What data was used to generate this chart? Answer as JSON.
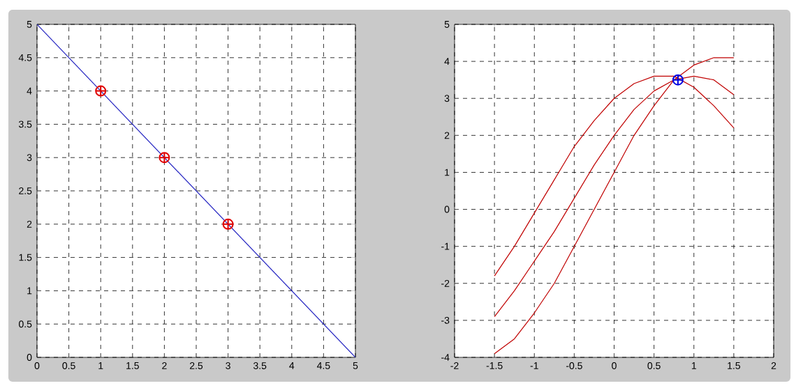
{
  "chart_data": [
    {
      "type": "line",
      "xlim": [
        0,
        5
      ],
      "ylim": [
        0,
        5
      ],
      "xticks": [
        0,
        0.5,
        1,
        1.5,
        2,
        2.5,
        3,
        3.5,
        4,
        4.5,
        5
      ],
      "yticks": [
        0,
        0.5,
        1,
        1.5,
        2,
        2.5,
        3,
        3.5,
        4,
        4.5,
        5
      ],
      "grid": true,
      "series": [
        {
          "type": "line",
          "color": "#2020c0",
          "x": [
            0,
            5
          ],
          "values": [
            5,
            0
          ]
        },
        {
          "type": "scatter",
          "marker": "cross",
          "color": "#e00000",
          "x": [
            1,
            2,
            3
          ],
          "values": [
            4,
            3,
            2
          ]
        }
      ]
    },
    {
      "type": "line",
      "xlim": [
        -2,
        2
      ],
      "ylim": [
        -4,
        5
      ],
      "xticks": [
        -2,
        -1.5,
        -1,
        -0.5,
        0,
        0.5,
        1,
        1.5,
        2
      ],
      "yticks": [
        -4,
        -3,
        -2,
        -1,
        0,
        1,
        2,
        3,
        4,
        5
      ],
      "grid": true,
      "series": [
        {
          "type": "line",
          "color": "#c00000",
          "x": [
            -1.5,
            -1.25,
            -1,
            -0.75,
            -0.5,
            -0.25,
            0,
            0.25,
            0.5,
            0.75,
            1,
            1.25,
            1.5
          ],
          "values": [
            -3.9,
            -3.5,
            -2.8,
            -2.0,
            -1.0,
            0.0,
            1.0,
            2.0,
            2.8,
            3.5,
            3.9,
            4.1,
            4.1
          ]
        },
        {
          "type": "line",
          "color": "#c00000",
          "x": [
            -1.5,
            -1.25,
            -1,
            -0.75,
            -0.5,
            -0.25,
            0,
            0.25,
            0.5,
            0.75,
            1,
            1.25,
            1.5
          ],
          "values": [
            -2.9,
            -2.2,
            -1.4,
            -0.6,
            0.3,
            1.2,
            2.0,
            2.7,
            3.2,
            3.5,
            3.6,
            3.5,
            3.1
          ]
        },
        {
          "type": "line",
          "color": "#c00000",
          "x": [
            -1.5,
            -1.25,
            -1,
            -0.75,
            -0.5,
            -0.25,
            0,
            0.25,
            0.5,
            0.75,
            1,
            1.25,
            1.5
          ],
          "values": [
            -1.8,
            -1.0,
            -0.1,
            0.8,
            1.7,
            2.4,
            3.0,
            3.4,
            3.6,
            3.6,
            3.3,
            2.8,
            2.2
          ]
        },
        {
          "type": "scatter",
          "marker": "cross",
          "color": "#0000e0",
          "x": [
            0.8
          ],
          "values": [
            3.5
          ]
        }
      ]
    }
  ]
}
